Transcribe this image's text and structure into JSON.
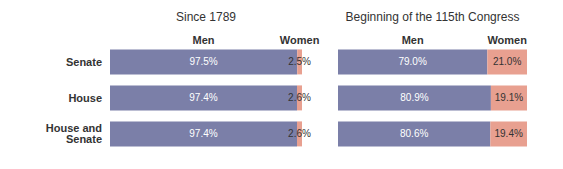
{
  "chart_data": [
    {
      "type": "bar",
      "orientation": "horizontal",
      "stacked": true,
      "title": "Since 1789",
      "categories": [
        "Senate",
        "House",
        "House and Senate"
      ],
      "series": [
        {
          "name": "Men",
          "color": "#7b7fa8",
          "values": [
            97.5,
            97.4,
            97.4
          ],
          "value_labels": [
            "97.5%",
            "97.4%",
            "97.4%"
          ]
        },
        {
          "name": "Women",
          "color": "#e8a090",
          "values": [
            2.5,
            2.6,
            2.6
          ],
          "value_labels": [
            "2.5%",
            "2.6%",
            "2.6%"
          ]
        }
      ],
      "xlim": [
        0,
        100
      ],
      "data_labels": true,
      "tick_labels": "y"
    },
    {
      "type": "bar",
      "orientation": "horizontal",
      "stacked": true,
      "title": "Beginning of the 115th Congress",
      "categories": [
        null,
        null,
        null
      ],
      "series": [
        {
          "name": "Men",
          "color": "#7b7fa8",
          "values": [
            79.0,
            80.9,
            80.6
          ],
          "value_labels": [
            "79.0%",
            "80.9%",
            "80.6%"
          ]
        },
        {
          "name": "Women",
          "color": "#e8a090",
          "values": [
            21.0,
            19.1,
            19.4
          ],
          "value_labels": [
            "21.0%",
            "19.1%",
            "19.4%"
          ]
        }
      ],
      "xlim": [
        0,
        100
      ],
      "data_labels": true,
      "tick_labels": false
    }
  ]
}
